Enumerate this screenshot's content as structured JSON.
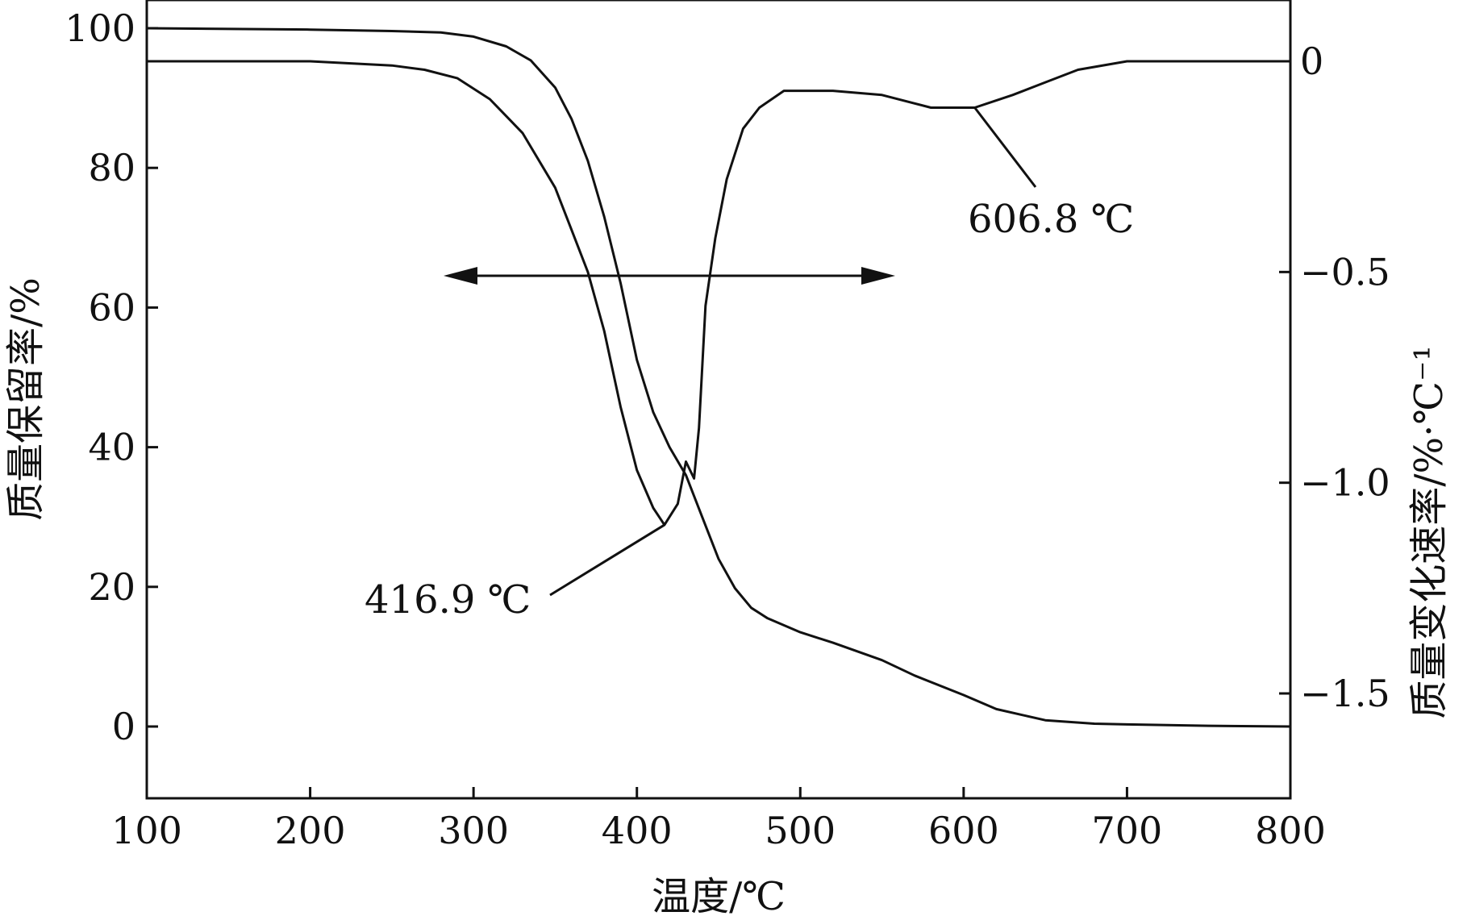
{
  "chart_data": {
    "type": "line",
    "title": "",
    "xlabel": "温度/℃",
    "ylabel_left": "质量保留率/%",
    "ylabel_right": "质量变化速率/%·℃⁻¹",
    "xlim": [
      100,
      800
    ],
    "ylim_left": [
      -10,
      105
    ],
    "ylim_right": [
      -1.75,
      0.17
    ],
    "x_ticks": [
      "100",
      "200",
      "300",
      "400",
      "500",
      "600",
      "700",
      "800"
    ],
    "y_ticks_left": [
      "0",
      "20",
      "40",
      "60",
      "80",
      "100"
    ],
    "y_ticks_right": [
      "−1.5",
      "−1.0",
      "−0.5",
      "0"
    ],
    "grid": false,
    "legend": "none",
    "series": [
      {
        "axis": "left",
        "x": [
          100,
          200,
          250,
          280,
          300,
          320,
          335,
          350,
          360,
          370,
          380,
          390,
          400,
          410,
          420,
          430,
          440,
          450,
          460,
          470,
          480,
          500,
          520,
          550,
          570,
          600,
          620,
          650,
          680,
          700,
          750,
          800
        ],
        "values": [
          100,
          99.8,
          99.6,
          99.4,
          98.8,
          97.4,
          95.4,
          91.5,
          87.0,
          81.0,
          73.0,
          63.5,
          52.5,
          45.0,
          40.0,
          36.0,
          30.0,
          24.0,
          19.8,
          17.0,
          15.5,
          13.5,
          12.0,
          9.5,
          7.3,
          4.5,
          2.5,
          0.9,
          0.4,
          0.3,
          0.1,
          0
        ]
      },
      {
        "axis": "right",
        "x": [
          100,
          150,
          200,
          250,
          270,
          290,
          310,
          330,
          350,
          360,
          370,
          380,
          390,
          400,
          410,
          416.9,
          425,
          430,
          435,
          438,
          442,
          448,
          455,
          465,
          475,
          490,
          500,
          520,
          550,
          580,
          606.8,
          630,
          650,
          670,
          700,
          750,
          800
        ],
        "values": [
          0,
          0,
          0,
          -0.01,
          -0.02,
          -0.04,
          -0.09,
          -0.17,
          -0.3,
          -0.4,
          -0.5,
          -0.64,
          -0.82,
          -0.97,
          -1.06,
          -1.1,
          -1.05,
          -0.95,
          -0.99,
          -0.87,
          -0.58,
          -0.42,
          -0.28,
          -0.16,
          -0.11,
          -0.07,
          -0.07,
          -0.07,
          -0.08,
          -0.11,
          -0.11,
          -0.08,
          -0.05,
          -0.02,
          0,
          0,
          0
        ]
      }
    ],
    "annotations": [
      {
        "text": "416.9 ℃",
        "x": 416.9,
        "y": -1.1,
        "axis": "right"
      },
      {
        "text": "606.8 ℃",
        "x": 606.8,
        "y": -0.11,
        "axis": "right"
      }
    ],
    "arrows": [
      {
        "direction": "left",
        "target_axis": "left"
      },
      {
        "direction": "right",
        "target_axis": "right"
      }
    ]
  }
}
